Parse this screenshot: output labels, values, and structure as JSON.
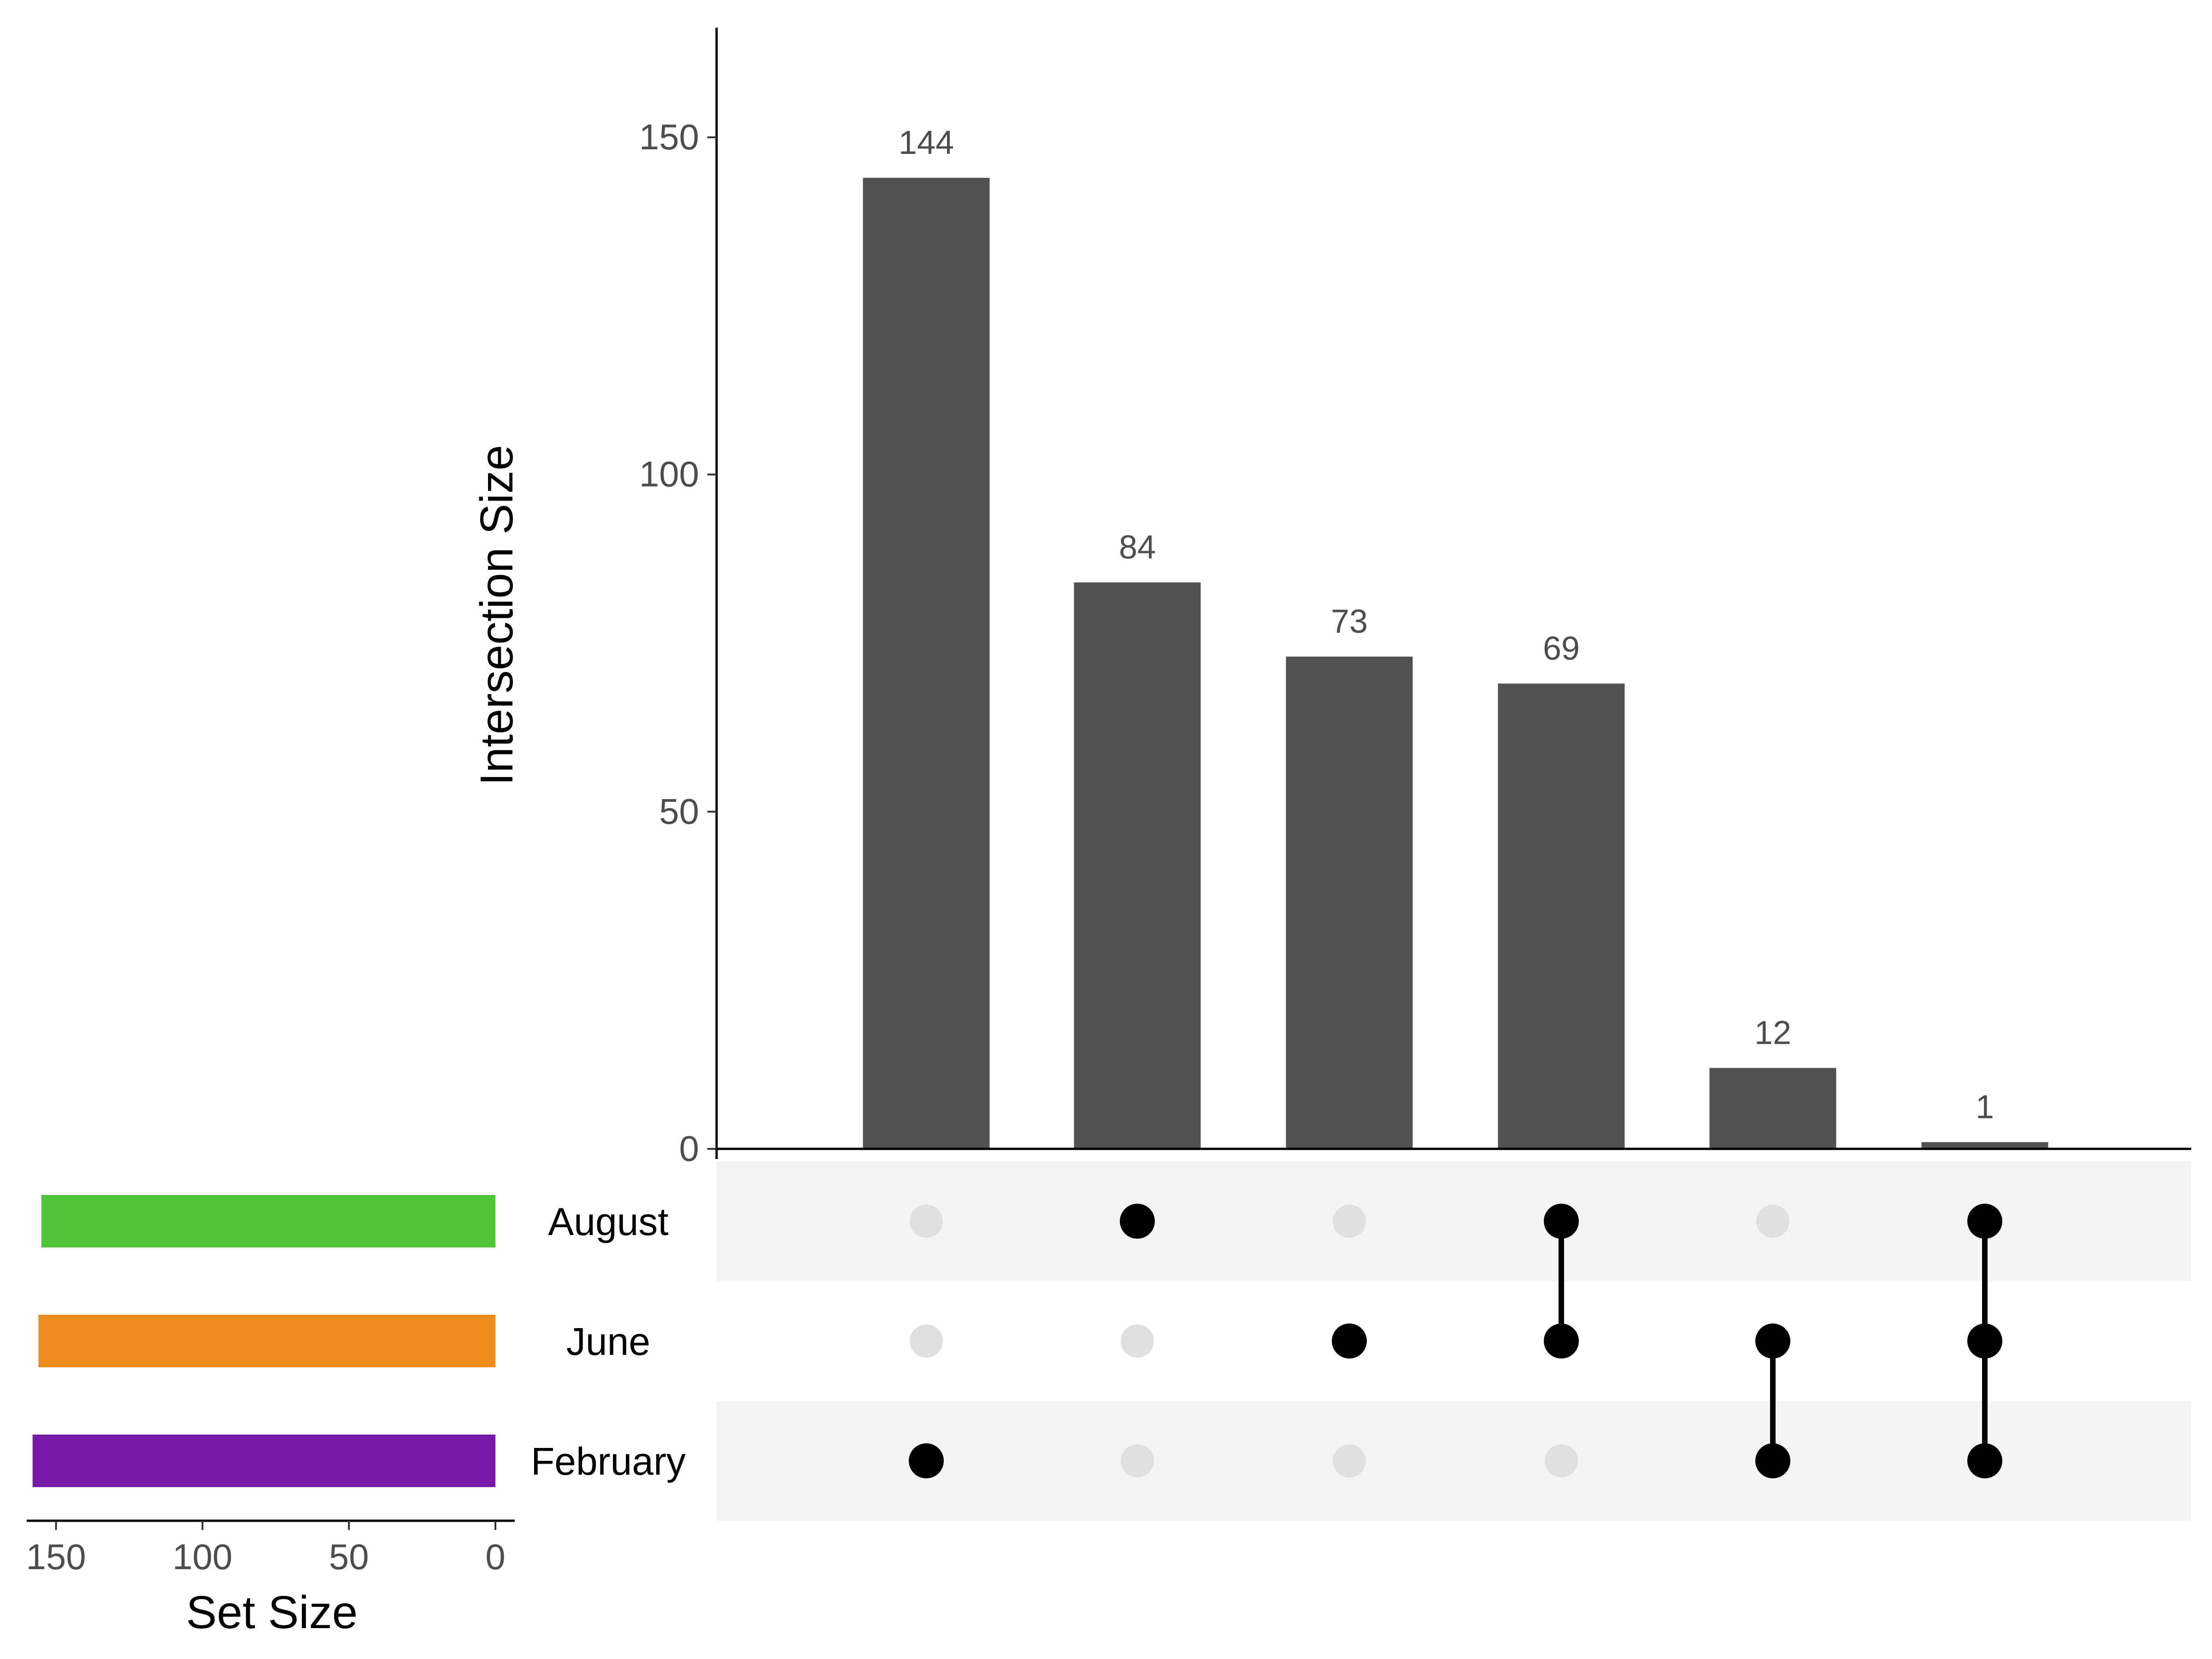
{
  "chart_data": {
    "type": "upset",
    "intersection_axis": {
      "ylabel": "Intersection Size",
      "ylim": [
        0,
        165
      ],
      "ticks": [
        0,
        50,
        100,
        150
      ]
    },
    "set_size_axis": {
      "xlabel": "Set Size",
      "xlim": [
        160,
        0
      ],
      "ticks": [
        150,
        100,
        50,
        0
      ]
    },
    "sets": [
      {
        "name": "August",
        "size": 155,
        "color": "#52c23a"
      },
      {
        "name": "June",
        "size": 156,
        "color": "#ed8c1c"
      },
      {
        "name": "February",
        "size": 158,
        "color": "#7719a7"
      }
    ],
    "intersections": [
      {
        "value": 144,
        "label": "144",
        "members": [
          "February"
        ]
      },
      {
        "value": 84,
        "label": "84",
        "members": [
          "August"
        ]
      },
      {
        "value": 73,
        "label": "73",
        "members": [
          "June"
        ]
      },
      {
        "value": 69,
        "label": "69",
        "members": [
          "August",
          "June"
        ]
      },
      {
        "value": 12,
        "label": "12",
        "members": [
          "June",
          "February"
        ]
      },
      {
        "value": 1,
        "label": "1",
        "members": [
          "August",
          "June",
          "February"
        ]
      }
    ],
    "bar_color": "#525252",
    "dot_active_color": "#000000",
    "dot_inactive_color": "#e0e0e0",
    "matrix_stripe_color": "#f4f4f4"
  }
}
